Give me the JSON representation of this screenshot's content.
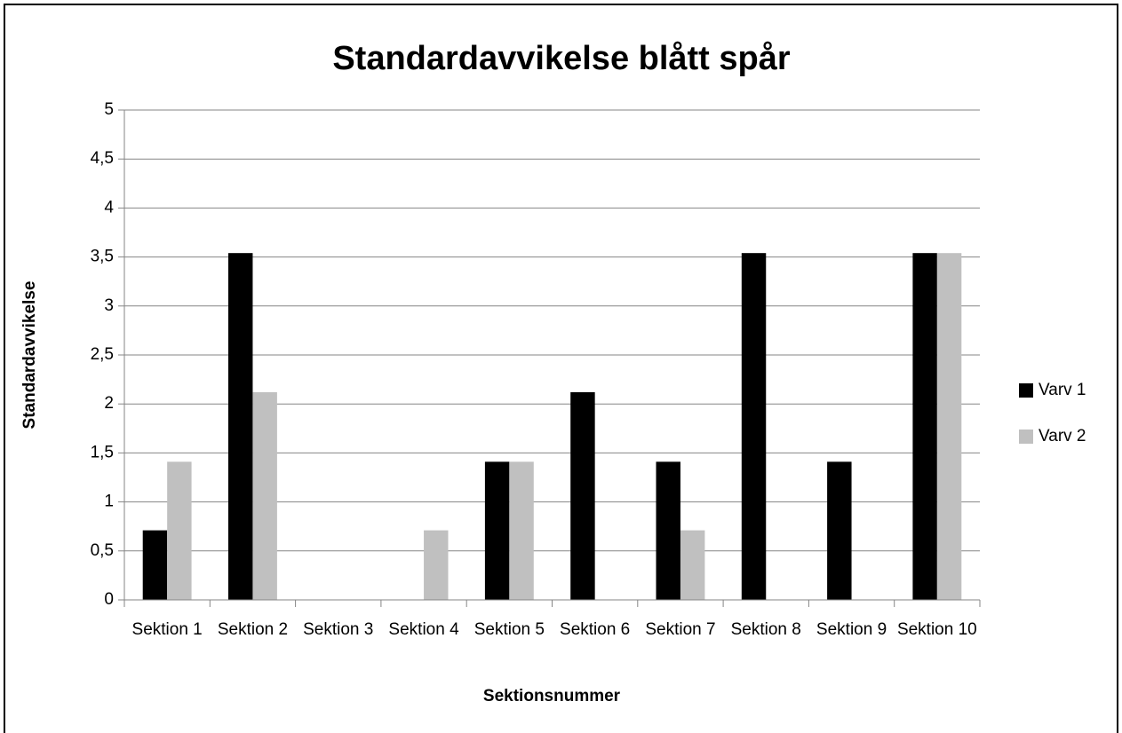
{
  "chart_data": {
    "type": "bar",
    "title": "Standardavvikelse blått spår",
    "x_label": "Sektionsnummer",
    "y_label": "Standardavvikelse",
    "categories": [
      "Sektion 1",
      "Sektion 2",
      "Sektion 3",
      "Sektion 4",
      "Sektion 5",
      "Sektion 6",
      "Sektion 7",
      "Sektion 8",
      "Sektion 9",
      "Sektion 10"
    ],
    "series": [
      {
        "name": "Varv 1",
        "color": "#000000",
        "values": [
          0.71,
          3.54,
          0,
          0,
          1.41,
          2.12,
          1.41,
          3.54,
          1.41,
          3.54
        ]
      },
      {
        "name": "Varv 2",
        "color": "#c0c0c0",
        "values": [
          1.41,
          2.12,
          0,
          0.71,
          1.41,
          0,
          0.71,
          0,
          0,
          3.54
        ]
      }
    ],
    "ylim": [
      0,
      5
    ],
    "yticks": [
      0,
      {
        "value": 0.5,
        "label": "0,5"
      },
      1,
      {
        "value": 1.5,
        "label": "1,5"
      },
      2,
      {
        "value": 2.5,
        "label": "2,5"
      },
      3,
      {
        "value": 3.5,
        "label": "3,5"
      },
      4,
      {
        "value": 4.5,
        "label": "4,5"
      },
      5
    ],
    "grid": true,
    "legend": "right"
  }
}
